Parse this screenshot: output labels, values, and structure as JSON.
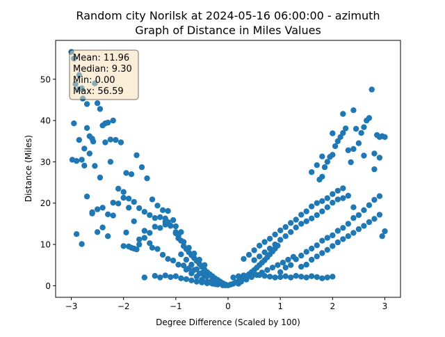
{
  "chart_data": {
    "type": "scatter",
    "title_line1": "Random city Norilsk at 2024-05-16 06:00:00  - azimuth",
    "title_line2": "Graph of Distance in Miles Values",
    "xlabel": "Degree Difference (Scaled by 100)",
    "ylabel": "Distance (Miles)",
    "xlim": [
      -3.3,
      3.3
    ],
    "ylim": [
      -2.8,
      59.4
    ],
    "xticks": [
      -3,
      -2,
      -1,
      0,
      1,
      2,
      3
    ],
    "yticks": [
      0,
      10,
      20,
      30,
      40,
      50
    ],
    "grid": false,
    "point_color": "#1f77b4",
    "stats": {
      "mean": "Mean: 11.96",
      "median": "Median: 9.30",
      "min": "Min: 0.00",
      "max": "Max: 56.59"
    },
    "x": [
      -3.0,
      -2.95,
      -2.92,
      -2.85,
      -2.85,
      -2.8,
      -2.78,
      -2.7,
      -2.7,
      -2.65,
      -2.6,
      -2.58,
      -2.55,
      -2.5,
      -2.45,
      -2.4,
      -2.35,
      -2.3,
      -2.25,
      -2.2,
      -2.98,
      -2.9,
      -2.8,
      -2.75,
      -2.7,
      -2.6,
      -2.5,
      -2.4,
      -2.3,
      -2.2,
      -2.1,
      -2.0,
      -1.9,
      -1.8,
      -1.7,
      -1.6,
      -1.5,
      -1.4,
      -1.3,
      -1.2,
      -2.95,
      -2.85,
      -2.75,
      -2.65,
      -2.55,
      -2.45,
      -2.35,
      -2.25,
      -2.15,
      -2.05,
      -1.95,
      -1.85,
      -1.75,
      -1.65,
      -1.55,
      -1.45,
      -1.35,
      -1.25,
      -1.15,
      -1.05,
      -2.9,
      -2.8,
      -2.6,
      -2.5,
      -2.4,
      -2.3,
      -2.2,
      -2.1,
      -2.0,
      -1.9,
      -1.8,
      -1.7,
      -1.6,
      -1.5,
      -1.4,
      -1.3,
      -1.2,
      -1.1,
      -1.0,
      -0.9,
      -2.0,
      -1.95,
      -1.9,
      -1.85,
      -1.8,
      -1.75,
      -1.7,
      -1.6,
      -1.5,
      -1.45,
      -1.35,
      -1.25,
      -1.15,
      -1.05,
      -0.95,
      -0.85,
      -0.75,
      -0.65,
      -0.55,
      -0.45,
      -1.6,
      -1.4,
      -1.3,
      -1.2,
      -1.1,
      -1.0,
      -0.9,
      -0.8,
      -0.7,
      -0.6,
      -0.5,
      -0.4,
      -0.3,
      -0.2,
      -0.1,
      -0.05,
      -1.0,
      -0.95,
      -0.9,
      -0.85,
      -0.8,
      -0.75,
      -0.7,
      -0.65,
      -0.6,
      -0.55,
      -0.5,
      -0.45,
      -0.4,
      -0.35,
      -0.3,
      -0.25,
      -0.2,
      -0.15,
      -0.1,
      -0.05,
      -0.9,
      -0.8,
      -0.7,
      -0.6,
      -0.5,
      -0.4,
      -0.3,
      -0.2,
      -0.15,
      -0.1,
      -0.8,
      -0.7,
      -0.6,
      -0.5,
      -0.4,
      -0.35,
      -0.3,
      -0.25,
      -0.2,
      -0.1,
      -1.2,
      -1.15,
      -1.1,
      -1.0,
      -0.95,
      -0.85,
      -0.75,
      -0.65,
      -0.55,
      -0.45,
      0.0,
      0.05,
      0.1,
      0.15,
      0.2,
      0.25,
      0.3,
      0.35,
      0.4,
      0.45,
      0.5,
      0.55,
      0.6,
      0.65,
      0.7,
      0.75,
      0.8,
      0.85,
      0.9,
      0.95,
      0.1,
      0.2,
      0.3,
      0.4,
      0.5,
      0.6,
      0.7,
      0.8,
      0.9,
      1.0,
      1.1,
      1.2,
      1.3,
      1.4,
      1.5,
      1.6,
      1.7,
      1.8,
      1.9,
      2.0,
      0.3,
      0.4,
      0.5,
      0.6,
      0.7,
      0.8,
      0.9,
      1.0,
      1.1,
      1.2,
      1.3,
      1.4,
      1.5,
      1.6,
      1.7,
      1.8,
      1.9,
      2.0,
      2.1,
      2.2,
      0.5,
      0.6,
      0.7,
      0.8,
      0.9,
      1.0,
      1.1,
      1.2,
      1.3,
      1.4,
      1.5,
      1.6,
      1.7,
      1.8,
      1.9,
      2.0,
      2.1,
      2.2,
      2.3,
      2.4,
      1.0,
      1.1,
      1.2,
      1.3,
      1.4,
      1.5,
      1.6,
      1.7,
      1.8,
      1.9,
      2.0,
      2.1,
      2.2,
      2.3,
      2.4,
      2.5,
      2.6,
      2.7,
      2.8,
      2.9,
      1.4,
      1.5,
      1.6,
      1.7,
      1.8,
      1.9,
      2.0,
      2.1,
      2.2,
      2.3,
      2.4,
      2.5,
      2.6,
      2.7,
      2.8,
      2.9,
      2.95,
      3.0,
      1.75,
      1.8,
      1.85,
      1.9,
      1.95,
      2.0,
      2.05,
      2.1,
      2.15,
      2.2,
      2.25,
      2.3,
      2.35,
      2.4,
      2.45,
      2.5,
      2.55,
      2.6,
      2.65,
      2.7,
      2.75,
      2.8,
      2.85,
      2.9,
      2.95,
      1.6,
      1.7,
      1.8,
      2.0,
      2.2,
      2.4,
      2.6,
      2.8,
      2.9,
      3.0,
      0.2,
      0.25,
      0.35,
      0.45,
      0.55,
      0.65,
      0.75,
      0.85,
      0.95,
      1.05,
      1.15,
      1.25
    ],
    "y": [
      56.6,
      55.0,
      48.8,
      51.0,
      47.6,
      47.8,
      45.3,
      44.0,
      38.2,
      36.2,
      35.6,
      34.9,
      49.0,
      44.2,
      42.8,
      38.8,
      39.3,
      39.5,
      35.4,
      40.0,
      30.5,
      30.2,
      30.5,
      29.1,
      21.6,
      17.8,
      18.5,
      18.9,
      17.3,
      17.0,
      23.5,
      21.3,
      18.9,
      15.6,
      11.2,
      13.3,
      12.8,
      14.3,
      14.0,
      14.8,
      39.3,
      35.3,
      33.2,
      32.0,
      29.0,
      26.2,
      34.7,
      30.0,
      35.3,
      34.7,
      27.3,
      27.0,
      31.6,
      28.7,
      26.0,
      20.9,
      19.4,
      18.3,
      18.1,
      15.9,
      12.5,
      10.1,
      17.5,
      13.0,
      14.1,
      12.0,
      20.1,
      19.9,
      22.7,
      21.1,
      20.3,
      18.8,
      17.9,
      17.1,
      16.4,
      16.6,
      15.5,
      14.6,
      14.4,
      13.0,
      9.6,
      12.9,
      9.5,
      9.2,
      9.0,
      8.8,
      10.0,
      11.6,
      10.3,
      9.2,
      8.9,
      7.5,
      6.5,
      6.1,
      5.1,
      4.9,
      4.2,
      3.8,
      2.9,
      2.3,
      2.0,
      2.4,
      2.0,
      2.5,
      2.1,
      2.3,
      1.8,
      1.6,
      1.3,
      1.0,
      0.8,
      0.6,
      0.5,
      0.4,
      0.2,
      0.1,
      12.7,
      11.5,
      10.9,
      9.6,
      8.9,
      8.1,
      7.4,
      6.7,
      6.0,
      5.3,
      4.6,
      3.9,
      3.3,
      2.8,
      2.3,
      1.8,
      1.4,
      1.0,
      0.6,
      0.3,
      7.6,
      6.3,
      5.1,
      4.0,
      3.1,
      2.3,
      1.6,
      1.0,
      0.7,
      0.4,
      3.9,
      3.0,
      2.2,
      1.5,
      1.0,
      0.8,
      0.6,
      0.4,
      0.3,
      0.1,
      16.3,
      15.4,
      14.5,
      13.0,
      12.1,
      10.6,
      9.2,
      7.8,
      6.3,
      5.0,
      0.1,
      0.3,
      0.5,
      0.8,
      1.1,
      1.5,
      1.8,
      2.3,
      2.8,
      3.3,
      3.8,
      4.4,
      5.0,
      5.6,
      6.2,
      6.9,
      7.6,
      8.3,
      9.0,
      9.7,
      2.0,
      2.3,
      2.5,
      2.7,
      2.8,
      2.6,
      2.4,
      2.2,
      2.0,
      2.1,
      2.3,
      2.0,
      2.4,
      2.2,
      2.0,
      2.3,
      2.1,
      1.8,
      2.0,
      2.2,
      6.5,
      7.5,
      8.6,
      9.7,
      10.6,
      11.4,
      12.4,
      13.4,
      14.2,
      15.2,
      16.0,
      17.2,
      18.0,
      19.2,
      20.0,
      20.5,
      21.2,
      22.2,
      23.0,
      23.6,
      6.2,
      7.1,
      8.1,
      9.0,
      10.0,
      11.1,
      12.0,
      13.0,
      14.1,
      15.0,
      15.6,
      16.3,
      17.1,
      18.0,
      19.0,
      20.1,
      20.9,
      21.2,
      21.8,
      19.0,
      3.3,
      4.4,
      5.0,
      6.4,
      7.3,
      8.2,
      9.0,
      9.8,
      10.9,
      11.6,
      12.2,
      13.3,
      14.0,
      15.0,
      16.4,
      17.1,
      18.3,
      19.5,
      20.8,
      21.7,
      4.6,
      5.1,
      6.3,
      7.1,
      7.9,
      8.7,
      9.6,
      10.5,
      11.3,
      12.0,
      12.8,
      13.7,
      14.5,
      15.4,
      16.2,
      17.2,
      12.0,
      13.2,
      25.7,
      26.4,
      28.7,
      30.0,
      31.2,
      31.7,
      33.8,
      35.0,
      36.0,
      37.0,
      38.1,
      32.8,
      29.9,
      33.1,
      38.0,
      34.5,
      37.0,
      38.4,
      40.0,
      40.6,
      47.5,
      32.0,
      36.5,
      31.0,
      36.2,
      27.5,
      29.2,
      31.3,
      36.9,
      41.6,
      42.5,
      31.5,
      28.2,
      36.0,
      36.0,
      0.5,
      1.0,
      1.5,
      2.1,
      2.6,
      3.2,
      3.8,
      4.4,
      5.0,
      5.6,
      6.3,
      7.0
    ]
  }
}
